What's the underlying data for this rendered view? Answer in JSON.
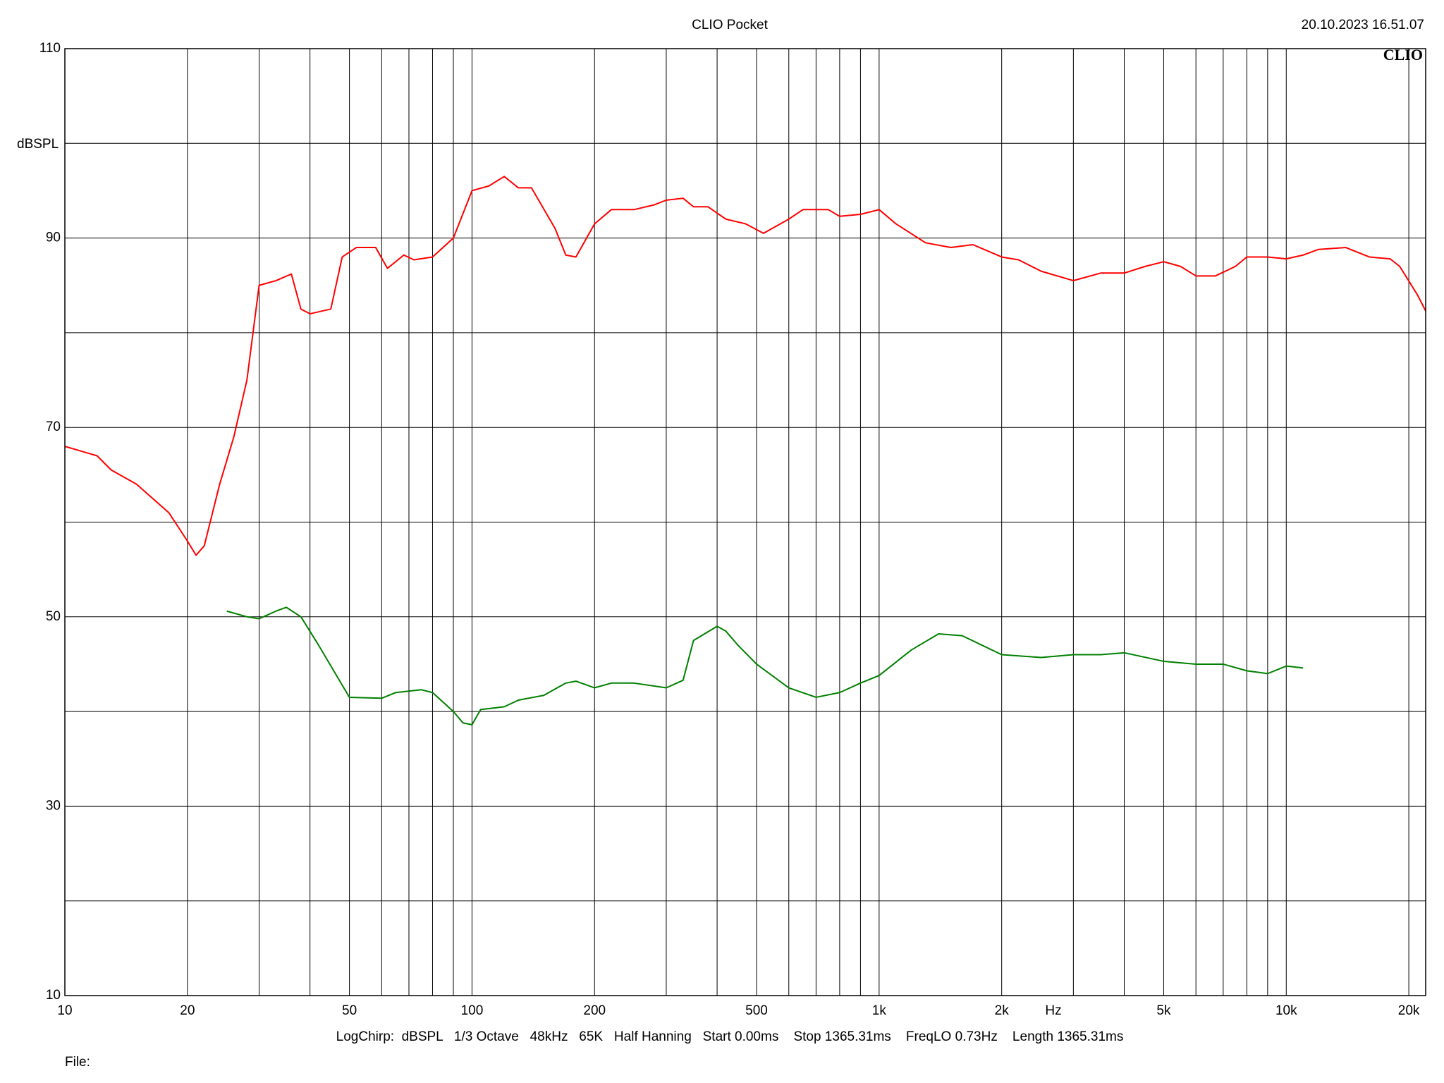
{
  "chart_data": {
    "type": "line",
    "title": "CLIO Pocket",
    "timestamp": "20.10.2023 16.51.07",
    "logo": "CLIO",
    "ylabel": "dBSPL",
    "xlabel": "Hz",
    "info": "LogChirp:  dBSPL   1/3 Octave   48kHz   65K   Half Hanning   Start 0.00ms    Stop 1365.31ms    FreqLO 0.73Hz    Length 1365.31ms",
    "file_label": "File:",
    "xlog": true,
    "grid": true,
    "xlim": [
      10,
      22000
    ],
    "ylim": [
      10,
      110
    ],
    "xticks": [
      10,
      20,
      50,
      100,
      200,
      500,
      {
        "value": 1000,
        "label": "1k"
      },
      {
        "value": 2000,
        "label": "2k"
      },
      {
        "value": 5000,
        "label": "5k"
      },
      {
        "value": 10000,
        "label": "10k"
      },
      {
        "value": 20000,
        "label": "20k"
      }
    ],
    "xgrid": [
      10,
      20,
      30,
      40,
      50,
      60,
      70,
      80,
      90,
      100,
      200,
      300,
      400,
      500,
      600,
      700,
      800,
      900,
      1000,
      2000,
      3000,
      4000,
      5000,
      6000,
      7000,
      8000,
      9000,
      10000,
      20000
    ],
    "yticks": [
      10,
      30,
      50,
      70,
      90,
      110
    ],
    "ygrid": [
      10,
      20,
      30,
      40,
      50,
      60,
      70,
      80,
      90,
      100,
      110
    ],
    "series": [
      {
        "color": "#ff0000",
        "x": [
          10,
          12,
          13,
          15,
          18,
          20,
          21,
          22,
          24,
          26,
          28,
          30,
          33,
          36,
          38,
          40,
          45,
          48,
          52,
          58,
          62,
          68,
          72,
          80,
          90,
          100,
          110,
          120,
          130,
          140,
          160,
          170,
          180,
          200,
          220,
          250,
          280,
          300,
          330,
          350,
          380,
          420,
          470,
          520,
          600,
          650,
          750,
          800,
          900,
          1000,
          1100,
          1300,
          1500,
          1700,
          2000,
          2200,
          2500,
          3000,
          3500,
          4000,
          4500,
          5000,
          5500,
          6000,
          6700,
          7500,
          8000,
          9000,
          10000,
          11000,
          12000,
          14000,
          16000,
          18000,
          19000,
          21000,
          22000
        ],
        "values": [
          68,
          67,
          65.5,
          64,
          61,
          58,
          56.5,
          57.5,
          64,
          69,
          75,
          85,
          85.5,
          86.2,
          82.5,
          82,
          82.5,
          88,
          89,
          89,
          86.8,
          88.2,
          87.7,
          88,
          90,
          95,
          95.5,
          96.5,
          95.3,
          95.3,
          91,
          88.2,
          88,
          91.5,
          93,
          93,
          93.5,
          94,
          94.2,
          93.3,
          93.3,
          92,
          91.5,
          90.5,
          92,
          93,
          93,
          92.3,
          92.5,
          93,
          91.5,
          89.5,
          89,
          89.3,
          88,
          87.7,
          86.5,
          85.5,
          86.3,
          86.3,
          87,
          87.5,
          87,
          86,
          86,
          87,
          88,
          88,
          87.8,
          88.2,
          88.8,
          89,
          88,
          87.8,
          87,
          84,
          82.3
        ]
      },
      {
        "color": "#008000",
        "x": [
          25,
          28,
          30,
          33,
          35,
          38,
          42,
          50,
          60,
          65,
          75,
          80,
          90,
          95,
          100,
          105,
          120,
          130,
          150,
          170,
          180,
          200,
          220,
          250,
          300,
          330,
          350,
          400,
          420,
          450,
          500,
          600,
          700,
          800,
          900,
          1000,
          1200,
          1400,
          1600,
          2000,
          2500,
          3000,
          3500,
          4000,
          5000,
          6000,
          7000,
          8000,
          9000,
          10000,
          11000
        ],
        "values": [
          50.6,
          50,
          49.8,
          50.6,
          51,
          50,
          47,
          41.5,
          41.4,
          42,
          42.3,
          42,
          40,
          38.8,
          38.6,
          40.2,
          40.5,
          41.2,
          41.7,
          43,
          43.2,
          42.5,
          43,
          43,
          42.5,
          43.3,
          47.5,
          49,
          48.5,
          47,
          45,
          42.5,
          41.5,
          42,
          43,
          43.8,
          46.5,
          48.2,
          48,
          46,
          45.7,
          46,
          46,
          46.2,
          45.3,
          45,
          45,
          44.3,
          44,
          44.8,
          44.6
        ]
      }
    ]
  }
}
